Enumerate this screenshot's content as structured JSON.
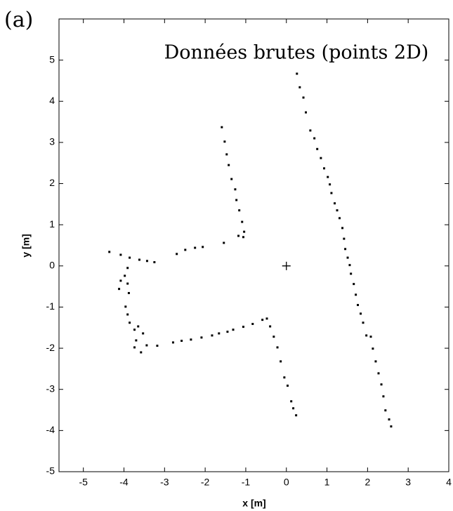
{
  "panel_label": "(a)",
  "chart_data": {
    "type": "scatter",
    "title": "Données brutes (points 2D)",
    "xlabel": "x [m]",
    "ylabel": "y [m]",
    "xlim": [
      -5.6,
      4
    ],
    "ylim": [
      -5,
      6
    ],
    "xticks": [
      -5,
      -4,
      -3,
      -2,
      -1,
      0,
      1,
      2,
      3,
      4
    ],
    "yticks": [
      -5,
      -4,
      -3,
      -2,
      -1,
      0,
      1,
      2,
      3,
      4,
      5
    ],
    "series": [
      {
        "color": "#000000",
        "marker": "square",
        "x": [
          0.26,
          0.33,
          0.42,
          0.48,
          0.59,
          0.69,
          0.76,
          0.85,
          0.93,
          1.02,
          1.07,
          1.11,
          1.19,
          1.25,
          1.31,
          1.38,
          1.42,
          1.45,
          1.51,
          1.56,
          1.59,
          1.66,
          1.71,
          1.76,
          1.83,
          1.89,
          1.97,
          2.08,
          2.13,
          2.2,
          2.27,
          2.34,
          2.39,
          2.44,
          2.53,
          2.58,
          -1.59,
          -1.52,
          -1.47,
          -1.42,
          -1.35,
          -1.26,
          -1.23,
          -1.16,
          -1.09,
          -1.04,
          -1.06,
          -1.18,
          -1.54,
          -2.06,
          -2.25,
          -2.49,
          -2.7,
          -3.25,
          -3.43,
          -3.62,
          -4.36,
          -4.08,
          -3.86,
          -3.91,
          -3.98,
          -4.08,
          -4.12,
          -3.91,
          -3.88,
          -3.96,
          -3.91,
          -3.86,
          -3.74,
          -3.65,
          -3.53,
          -3.7,
          -3.74,
          -3.58,
          -3.44,
          -3.18,
          -2.79,
          -2.58,
          -2.35,
          -2.09,
          -1.83,
          -1.66,
          -1.45,
          -1.31,
          -1.06,
          -0.83,
          -0.59,
          -0.48,
          -0.4,
          -0.31,
          -0.22,
          -0.14,
          -0.05,
          0.03,
          0.12,
          0.17,
          0.24
        ],
        "y": [
          4.67,
          4.34,
          4.09,
          3.73,
          3.29,
          3.1,
          2.84,
          2.62,
          2.37,
          2.16,
          1.98,
          1.77,
          1.52,
          1.35,
          1.16,
          0.92,
          0.66,
          0.41,
          0.2,
          0.02,
          -0.19,
          -0.44,
          -0.7,
          -0.95,
          -1.16,
          -1.38,
          -1.69,
          -1.72,
          -2.01,
          -2.32,
          -2.61,
          -2.88,
          -3.17,
          -3.51,
          -3.73,
          -3.9,
          3.37,
          3.02,
          2.71,
          2.45,
          2.11,
          1.86,
          1.6,
          1.35,
          1.07,
          0.83,
          0.7,
          0.73,
          0.56,
          0.46,
          0.44,
          0.39,
          0.29,
          0.09,
          0.12,
          0.15,
          0.34,
          0.27,
          0.2,
          -0.05,
          -0.24,
          -0.36,
          -0.56,
          -0.43,
          -0.66,
          -0.99,
          -1.18,
          -1.38,
          -1.55,
          -1.47,
          -1.64,
          -1.81,
          -1.98,
          -2.1,
          -1.93,
          -1.94,
          -1.86,
          -1.82,
          -1.79,
          -1.74,
          -1.69,
          -1.64,
          -1.6,
          -1.55,
          -1.48,
          -1.41,
          -1.31,
          -1.28,
          -1.47,
          -1.72,
          -1.98,
          -2.32,
          -2.71,
          -2.91,
          -3.29,
          -3.46,
          -3.63
        ]
      },
      {
        "color": "#000000",
        "marker": "plus",
        "x": [
          0
        ],
        "y": [
          0
        ]
      }
    ]
  }
}
